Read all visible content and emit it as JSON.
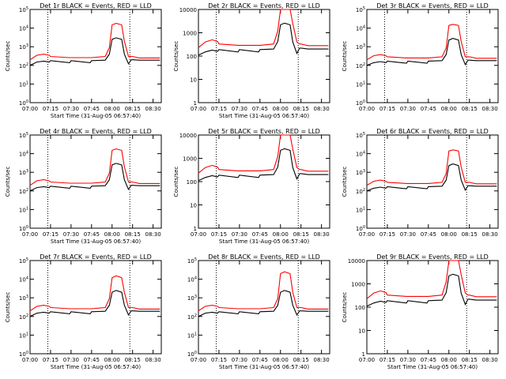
{
  "chart_data": [
    {
      "type": "line",
      "title": "Det 1r BLACK = Events, RED = LLD",
      "xlabel": "Start Time (31-Aug-05 06:57:40)",
      "ylabel": "Counts/sec",
      "yscale": "log",
      "ylim": [
        1,
        100000
      ],
      "yticks": [
        "10^0",
        "10^1",
        "10^2",
        "10^3",
        "10^4",
        "10^5"
      ],
      "xlim": [
        "07:00",
        "08:36"
      ],
      "xticks": [
        "07:00",
        "07:15",
        "07:30",
        "07:45",
        "08:00",
        "08:15",
        "08:30"
      ],
      "vlines": [
        "07:13",
        "08:13"
      ],
      "x": [
        "07:00",
        "07:05",
        "07:10",
        "07:14",
        "07:15",
        "07:29",
        "07:30",
        "07:44",
        "07:45",
        "07:55",
        "07:58",
        "08:00",
        "08:03",
        "08:07",
        "08:09",
        "08:12",
        "08:14",
        "08:15",
        "08:20",
        "08:30",
        "08:35"
      ],
      "series": [
        {
          "name": "BLACK = Events",
          "color": "#000000",
          "values": [
            100,
            150,
            170,
            150,
            180,
            140,
            180,
            140,
            180,
            190,
            400,
            2500,
            3000,
            2500,
            400,
            120,
            200,
            200,
            190,
            190,
            190
          ]
        },
        {
          "name": "RED = LLD",
          "color": "#ff0000",
          "values": [
            200,
            350,
            400,
            350,
            300,
            260,
            260,
            260,
            260,
            300,
            900,
            15000,
            18000,
            15000,
            2000,
            300,
            300,
            300,
            250,
            250,
            250
          ]
        }
      ]
    },
    {
      "type": "line",
      "title": "Det 2r BLACK = Events, RED = LLD",
      "xlabel": "Start Time (31-Aug-05 06:57:40)",
      "ylabel": "Counts/sec",
      "yscale": "log",
      "ylim": [
        1,
        10000
      ],
      "yticks": [
        "1",
        "10",
        "100",
        "1000",
        "10000"
      ],
      "xlim": [
        "07:00",
        "08:36"
      ],
      "xticks": [
        "07:00",
        "07:15",
        "07:30",
        "07:45",
        "08:00",
        "08:15",
        "08:30"
      ],
      "vlines": [
        "07:13",
        "08:13"
      ],
      "x": [
        "07:00",
        "07:05",
        "07:10",
        "07:14",
        "07:15",
        "07:29",
        "07:30",
        "07:44",
        "07:45",
        "07:55",
        "07:58",
        "08:00",
        "08:03",
        "08:07",
        "08:09",
        "08:12",
        "08:14",
        "08:15",
        "08:20",
        "08:30",
        "08:35"
      ],
      "series": [
        {
          "name": "BLACK = Events",
          "color": "#000000",
          "values": [
            110,
            150,
            180,
            160,
            190,
            150,
            190,
            150,
            190,
            200,
            420,
            2200,
            2600,
            2200,
            400,
            130,
            220,
            220,
            200,
            200,
            200
          ]
        },
        {
          "name": "RED = LLD",
          "color": "#ff0000",
          "values": [
            230,
            400,
            500,
            420,
            330,
            290,
            290,
            290,
            290,
            330,
            1200,
            10000,
            10000,
            10000,
            2500,
            400,
            330,
            330,
            280,
            280,
            280
          ]
        }
      ]
    },
    {
      "type": "line",
      "title": "Det 3r BLACK = Events, RED = LLD",
      "xlabel": "",
      "ylabel": "Counts/sec",
      "yscale": "log",
      "ylim": [
        1,
        100000
      ],
      "yticks": [
        "10^0",
        "10^1",
        "10^2",
        "10^3",
        "10^4",
        "10^5"
      ],
      "xlim": [
        "07:00",
        "08:36"
      ],
      "xticks": [
        "07:00",
        "07:15",
        "07:30",
        "07:45",
        "08:00",
        "08:15",
        "08:30"
      ],
      "vlines": [
        "07:13",
        "08:13"
      ],
      "x": [
        "07:00",
        "07:05",
        "07:10",
        "07:14",
        "07:15",
        "07:29",
        "07:30",
        "07:44",
        "07:45",
        "07:55",
        "07:58",
        "08:00",
        "08:03",
        "08:07",
        "08:09",
        "08:12",
        "08:14",
        "08:15",
        "08:20",
        "08:30",
        "08:35"
      ],
      "series": [
        {
          "name": "BLACK = Events",
          "color": "#000000",
          "values": [
            100,
            140,
            160,
            140,
            170,
            130,
            170,
            130,
            170,
            180,
            380,
            2300,
            2800,
            2300,
            380,
            110,
            190,
            190,
            180,
            180,
            180
          ]
        },
        {
          "name": "RED = LLD",
          "color": "#ff0000",
          "values": [
            200,
            330,
            380,
            330,
            290,
            250,
            250,
            250,
            250,
            290,
            850,
            14000,
            16000,
            14000,
            1900,
            290,
            290,
            290,
            240,
            240,
            240
          ]
        }
      ]
    },
    {
      "type": "line",
      "title": "Det 4r BLACK = Events, RED = LLD",
      "xlabel": "Start Time (31-Aug-05 06:57:40)",
      "ylabel": "Counts/sec",
      "yscale": "log",
      "ylim": [
        1,
        100000
      ],
      "yticks": [
        "10^0",
        "10^1",
        "10^2",
        "10^3",
        "10^4",
        "10^5"
      ],
      "xlim": [
        "07:00",
        "08:36"
      ],
      "xticks": [
        "07:00",
        "07:15",
        "07:30",
        "07:45",
        "08:00",
        "08:15",
        "08:30"
      ],
      "vlines": [
        "07:13",
        "08:13"
      ],
      "x": [
        "07:00",
        "07:05",
        "07:10",
        "07:14",
        "07:15",
        "07:29",
        "07:30",
        "07:44",
        "07:45",
        "07:55",
        "07:58",
        "08:00",
        "08:03",
        "08:07",
        "08:09",
        "08:12",
        "08:14",
        "08:15",
        "08:20",
        "08:30",
        "08:35"
      ],
      "series": [
        {
          "name": "BLACK = Events",
          "color": "#000000",
          "values": [
            100,
            150,
            170,
            150,
            180,
            140,
            180,
            140,
            180,
            190,
            400,
            2500,
            3000,
            2500,
            400,
            120,
            200,
            200,
            190,
            190,
            190
          ]
        },
        {
          "name": "RED = LLD",
          "color": "#ff0000",
          "values": [
            200,
            350,
            400,
            350,
            300,
            260,
            260,
            260,
            260,
            300,
            900,
            15000,
            18000,
            15000,
            2000,
            300,
            300,
            300,
            250,
            250,
            250
          ]
        }
      ]
    },
    {
      "type": "line",
      "title": "Det 5r BLACK = Events, RED = LLD",
      "xlabel": "Start Time (31-Aug-05 06:57:40)",
      "ylabel": "Counts/sec",
      "yscale": "log",
      "ylim": [
        1,
        10000
      ],
      "yticks": [
        "1",
        "10",
        "100",
        "1000",
        "10000"
      ],
      "xlim": [
        "07:00",
        "08:36"
      ],
      "xticks": [
        "07:00",
        "07:15",
        "07:30",
        "07:45",
        "08:00",
        "08:15",
        "08:30"
      ],
      "vlines": [
        "07:13",
        "08:13"
      ],
      "x": [
        "07:00",
        "07:05",
        "07:10",
        "07:14",
        "07:15",
        "07:29",
        "07:30",
        "07:44",
        "07:45",
        "07:55",
        "07:58",
        "08:00",
        "08:03",
        "08:07",
        "08:09",
        "08:12",
        "08:14",
        "08:15",
        "08:20",
        "08:30",
        "08:35"
      ],
      "series": [
        {
          "name": "BLACK = Events",
          "color": "#000000",
          "values": [
            110,
            150,
            180,
            160,
            190,
            150,
            190,
            150,
            190,
            200,
            420,
            2200,
            2600,
            2200,
            400,
            130,
            220,
            220,
            200,
            200,
            200
          ]
        },
        {
          "name": "RED = LLD",
          "color": "#ff0000",
          "values": [
            230,
            400,
            500,
            420,
            330,
            290,
            290,
            290,
            290,
            330,
            1200,
            10000,
            10000,
            10000,
            2500,
            400,
            330,
            330,
            280,
            280,
            280
          ]
        }
      ]
    },
    {
      "type": "line",
      "title": "Det 6r BLACK = Events, RED = LLD",
      "xlabel": "",
      "ylabel": "Counts/sec",
      "yscale": "log",
      "ylim": [
        1,
        100000
      ],
      "yticks": [
        "10^0",
        "10^1",
        "10^2",
        "10^3",
        "10^4",
        "10^5"
      ],
      "xlim": [
        "07:00",
        "08:36"
      ],
      "xticks": [
        "07:00",
        "07:15",
        "07:30",
        "07:45",
        "08:00",
        "08:15",
        "08:30"
      ],
      "vlines": [
        "07:13",
        "08:13"
      ],
      "x": [
        "07:00",
        "07:05",
        "07:10",
        "07:14",
        "07:15",
        "07:29",
        "07:30",
        "07:44",
        "07:45",
        "07:55",
        "07:58",
        "08:00",
        "08:03",
        "08:07",
        "08:09",
        "08:12",
        "08:14",
        "08:15",
        "08:20",
        "08:30",
        "08:35"
      ],
      "series": [
        {
          "name": "BLACK = Events",
          "color": "#000000",
          "values": [
            100,
            140,
            160,
            140,
            170,
            130,
            170,
            130,
            170,
            180,
            380,
            2300,
            2800,
            2300,
            380,
            110,
            190,
            190,
            180,
            180,
            180
          ]
        },
        {
          "name": "RED = LLD",
          "color": "#ff0000",
          "values": [
            200,
            330,
            380,
            330,
            290,
            250,
            250,
            250,
            250,
            290,
            850,
            14000,
            16000,
            14000,
            1900,
            290,
            290,
            290,
            240,
            240,
            240
          ]
        }
      ]
    },
    {
      "type": "line",
      "title": "Det 7r BLACK = Events, RED = LLD",
      "xlabel": "Start Time (31-Aug-05 06:57:40)",
      "ylabel": "Counts/sec",
      "yscale": "log",
      "ylim": [
        1,
        100000
      ],
      "yticks": [
        "10^0",
        "10^1",
        "10^2",
        "10^3",
        "10^4",
        "10^5"
      ],
      "xlim": [
        "07:00",
        "08:36"
      ],
      "xticks": [
        "07:00",
        "07:15",
        "07:30",
        "07:45",
        "08:00",
        "08:15",
        "08:30"
      ],
      "vlines": [
        "07:13",
        "08:13"
      ],
      "x": [
        "07:00",
        "07:05",
        "07:10",
        "07:14",
        "07:15",
        "07:29",
        "07:30",
        "07:44",
        "07:45",
        "07:55",
        "07:58",
        "08:00",
        "08:03",
        "08:07",
        "08:09",
        "08:12",
        "08:14",
        "08:15",
        "08:20",
        "08:30",
        "08:35"
      ],
      "series": [
        {
          "name": "BLACK = Events",
          "color": "#000000",
          "values": [
            100,
            150,
            170,
            150,
            180,
            140,
            180,
            140,
            180,
            190,
            400,
            2000,
            2500,
            2000,
            400,
            120,
            200,
            200,
            190,
            190,
            190
          ]
        },
        {
          "name": "RED = LLD",
          "color": "#ff0000",
          "values": [
            200,
            350,
            400,
            350,
            300,
            260,
            260,
            260,
            260,
            300,
            900,
            12000,
            15000,
            12000,
            2000,
            300,
            300,
            300,
            250,
            250,
            250
          ]
        }
      ]
    },
    {
      "type": "line",
      "title": "Det 8r BLACK = Events, RED = LLD",
      "xlabel": "Start Time (31-Aug-05 06:57:40)",
      "ylabel": "",
      "yscale": "log",
      "ylim": [
        1,
        100000
      ],
      "yticks": [
        "10^0",
        "10^1",
        "10^2",
        "10^3",
        "10^4",
        "10^5"
      ],
      "xlim": [
        "07:00",
        "08:36"
      ],
      "xticks": [
        "07:00",
        "07:15",
        "07:30",
        "07:45",
        "08:00",
        "08:15",
        "08:30"
      ],
      "vlines": [
        "07:13",
        "08:13"
      ],
      "x": [
        "07:00",
        "07:05",
        "07:10",
        "07:14",
        "07:15",
        "07:29",
        "07:30",
        "07:44",
        "07:45",
        "07:55",
        "07:58",
        "08:00",
        "08:03",
        "08:07",
        "08:09",
        "08:12",
        "08:14",
        "08:15",
        "08:20",
        "08:30",
        "08:35"
      ],
      "series": [
        {
          "name": "BLACK = Events",
          "color": "#000000",
          "values": [
            100,
            150,
            170,
            150,
            180,
            140,
            180,
            140,
            180,
            190,
            400,
            2000,
            2500,
            2000,
            400,
            120,
            200,
            200,
            190,
            190,
            190
          ]
        },
        {
          "name": "RED = LLD",
          "color": "#ff0000",
          "values": [
            200,
            350,
            400,
            350,
            300,
            260,
            260,
            260,
            260,
            300,
            900,
            20000,
            25000,
            20000,
            2000,
            300,
            300,
            300,
            250,
            250,
            250
          ]
        }
      ]
    },
    {
      "type": "line",
      "title": "Det 9r BLACK = Events, RED = LLD",
      "xlabel": "Start Time (31-Aug-05 06:57:40)",
      "ylabel": "Counts/sec",
      "yscale": "log",
      "ylim": [
        1,
        10000
      ],
      "yticks": [
        "1",
        "10",
        "100",
        "1000",
        "10000"
      ],
      "xlim": [
        "07:00",
        "08:36"
      ],
      "xticks": [
        "07:00",
        "07:15",
        "07:30",
        "07:45",
        "08:00",
        "08:15",
        "08:30"
      ],
      "vlines": [
        "07:13",
        "08:13"
      ],
      "x": [
        "07:00",
        "07:05",
        "07:10",
        "07:14",
        "07:15",
        "07:29",
        "07:30",
        "07:44",
        "07:45",
        "07:55",
        "07:58",
        "08:00",
        "08:03",
        "08:07",
        "08:09",
        "08:12",
        "08:14",
        "08:15",
        "08:20",
        "08:30",
        "08:35"
      ],
      "series": [
        {
          "name": "BLACK = Events",
          "color": "#000000",
          "values": [
            110,
            150,
            180,
            160,
            190,
            150,
            190,
            150,
            190,
            200,
            420,
            2200,
            2600,
            2200,
            400,
            130,
            220,
            220,
            200,
            200,
            200
          ]
        },
        {
          "name": "RED = LLD",
          "color": "#ff0000",
          "values": [
            230,
            400,
            500,
            420,
            330,
            290,
            290,
            290,
            290,
            330,
            1200,
            10000,
            10000,
            10000,
            2500,
            400,
            330,
            330,
            280,
            280,
            280
          ]
        }
      ]
    }
  ]
}
